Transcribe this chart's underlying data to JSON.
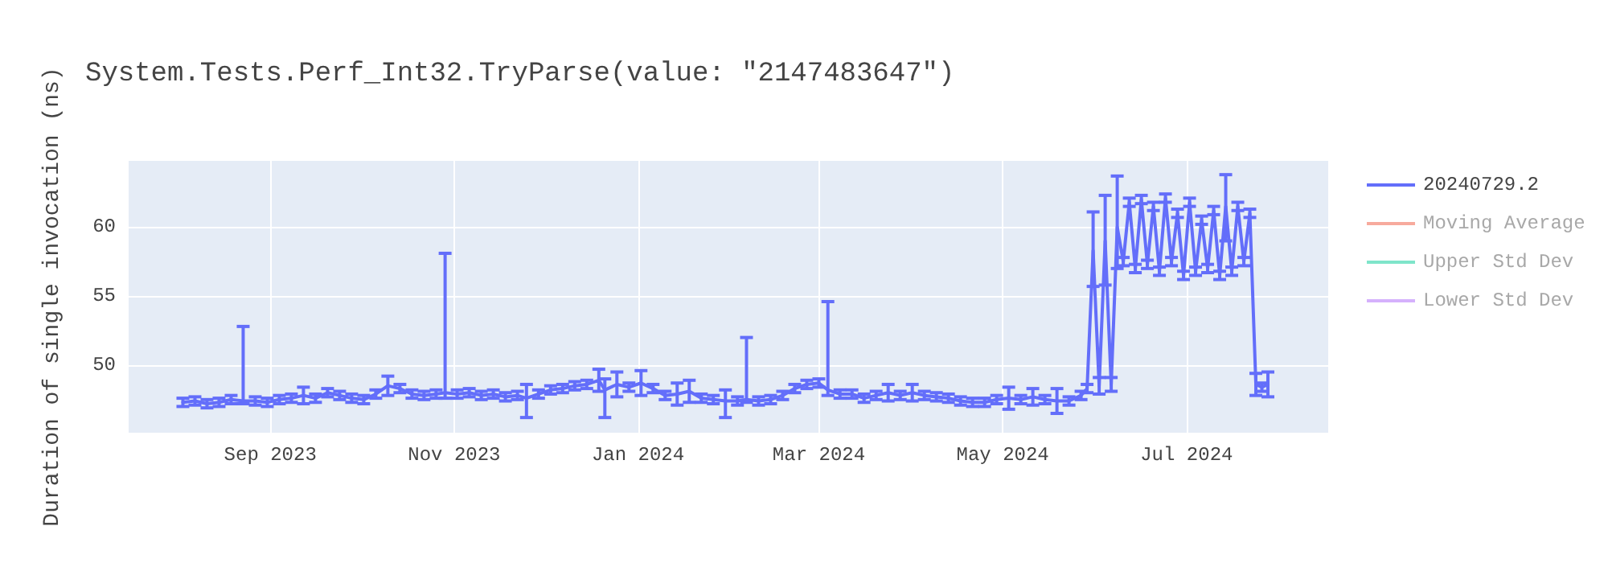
{
  "chart_data": {
    "type": "line",
    "title": "System.Tests.Perf_Int32.TryParse(value: \"2147483647\")",
    "ylabel": "Duration of single invocation (ns)",
    "x": [
      "2023-08-03",
      "2023-08-07",
      "2023-08-11",
      "2023-08-15",
      "2023-08-19",
      "2023-08-23",
      "2023-08-27",
      "2023-08-31",
      "2023-09-04",
      "2023-09-08",
      "2023-09-12",
      "2023-09-16",
      "2023-09-20",
      "2023-09-24",
      "2023-09-28",
      "2023-10-02",
      "2023-10-06",
      "2023-10-10",
      "2023-10-14",
      "2023-10-18",
      "2023-10-22",
      "2023-10-26",
      "2023-10-29",
      "2023-11-02",
      "2023-11-06",
      "2023-11-10",
      "2023-11-14",
      "2023-11-18",
      "2023-11-22",
      "2023-11-25",
      "2023-11-29",
      "2023-12-03",
      "2023-12-07",
      "2023-12-11",
      "2023-12-15",
      "2023-12-19",
      "2023-12-21",
      "2023-12-25",
      "2023-12-29",
      "2024-01-02",
      "2024-01-06",
      "2024-01-10",
      "2024-01-14",
      "2024-01-18",
      "2024-01-22",
      "2024-01-26",
      "2024-01-30",
      "2024-02-03",
      "2024-02-06",
      "2024-02-10",
      "2024-02-14",
      "2024-02-18",
      "2024-02-22",
      "2024-02-26",
      "2024-03-01",
      "2024-03-04",
      "2024-03-08",
      "2024-03-12",
      "2024-03-16",
      "2024-03-20",
      "2024-03-24",
      "2024-03-28",
      "2024-04-01",
      "2024-04-05",
      "2024-04-09",
      "2024-04-13",
      "2024-04-17",
      "2024-04-21",
      "2024-04-25",
      "2024-04-29",
      "2024-05-03",
      "2024-05-07",
      "2024-05-11",
      "2024-05-15",
      "2024-05-19",
      "2024-05-23",
      "2024-05-27",
      "2024-05-29",
      "2024-05-31",
      "2024-06-02",
      "2024-06-04",
      "2024-06-06",
      "2024-06-08",
      "2024-06-10",
      "2024-06-12",
      "2024-06-14",
      "2024-06-16",
      "2024-06-18",
      "2024-06-20",
      "2024-06-22",
      "2024-06-24",
      "2024-06-26",
      "2024-06-28",
      "2024-06-30",
      "2024-07-02",
      "2024-07-04",
      "2024-07-06",
      "2024-07-08",
      "2024-07-10",
      "2024-07-12",
      "2024-07-14",
      "2024-07-16",
      "2024-07-18",
      "2024-07-20",
      "2024-07-22",
      "2024-07-24",
      "2024-07-26",
      "2024-07-28"
    ],
    "series": [
      {
        "name": "20240729.2",
        "color": "#636efa",
        "values": [
          47.3,
          47.4,
          47.2,
          47.3,
          47.5,
          47.4,
          47.4,
          47.3,
          47.5,
          47.6,
          47.8,
          47.6,
          48.0,
          47.8,
          47.6,
          47.5,
          47.9,
          48.5,
          48.3,
          47.9,
          47.8,
          47.9,
          48.0,
          47.9,
          48.0,
          47.8,
          47.9,
          47.7,
          47.8,
          47.6,
          47.9,
          48.2,
          48.3,
          48.5,
          48.6,
          48.9,
          48.2,
          48.6,
          48.4,
          48.7,
          48.3,
          47.8,
          47.9,
          48.1,
          47.6,
          47.5,
          47.4,
          47.4,
          47.5,
          47.4,
          47.5,
          47.8,
          48.3,
          48.6,
          48.7,
          48.2,
          47.9,
          47.9,
          47.6,
          47.8,
          48.0,
          47.8,
          48.0,
          47.8,
          47.7,
          47.6,
          47.4,
          47.3,
          47.3,
          47.5,
          47.6,
          47.5,
          47.7,
          47.5,
          47.4,
          47.4,
          47.8,
          48.3,
          58.3,
          48.5,
          59.0,
          48.6,
          60.0,
          57.5,
          61.8,
          57.0,
          62.0,
          57.3,
          61.5,
          56.8,
          62.1,
          57.5,
          61.0,
          56.5,
          61.8,
          56.8,
          60.5,
          57.0,
          61.2,
          56.5,
          61.5,
          56.8,
          61.5,
          57.5,
          61.0,
          48.6,
          48.4,
          48.6
        ],
        "errors": [
          0.3,
          0.3,
          0.3,
          0.3,
          0.3,
          [
            47.2,
            52.8
          ],
          0.3,
          0.3,
          0.3,
          0.3,
          0.6,
          0.3,
          0.3,
          0.3,
          0.3,
          0.3,
          0.3,
          0.7,
          0.3,
          0.3,
          0.3,
          0.3,
          [
            47.6,
            58.1
          ],
          0.3,
          0.3,
          0.3,
          0.3,
          0.3,
          0.3,
          [
            46.2,
            48.6
          ],
          0.3,
          0.3,
          0.3,
          0.3,
          0.3,
          0.8,
          [
            46.2,
            49.0
          ],
          0.9,
          0.3,
          0.9,
          0.3,
          0.3,
          0.8,
          0.8,
          0.3,
          0.3,
          [
            46.2,
            48.2
          ],
          0.3,
          [
            47.3,
            52.0
          ],
          0.3,
          0.3,
          0.3,
          0.3,
          0.3,
          0.3,
          [
            47.8,
            54.6
          ],
          0.3,
          0.3,
          0.3,
          0.3,
          0.6,
          0.3,
          0.6,
          0.3,
          0.3,
          0.3,
          0.3,
          0.3,
          0.3,
          0.3,
          0.8,
          0.3,
          0.6,
          0.3,
          0.9,
          0.3,
          0.3,
          0.3,
          [
            55.7,
            61.1
          ],
          0.6,
          [
            55.8,
            62.3
          ],
          0.5,
          [
            57.0,
            63.7
          ],
          0.3,
          0.3,
          0.3,
          0.3,
          0.3,
          0.3,
          0.3,
          0.3,
          0.3,
          0.3,
          0.3,
          0.3,
          0.3,
          0.3,
          0.3,
          0.3,
          0.3,
          [
            59.0,
            63.8
          ],
          0.3,
          0.3,
          0.3,
          0.3,
          0.8,
          0.3,
          0.9
        ]
      },
      {
        "name": "Moving Average",
        "color": "#ef553b",
        "values": [
          null,
          null,
          null,
          null,
          null,
          null,
          null,
          null,
          null,
          null,
          null,
          null,
          null,
          null,
          null,
          null,
          null,
          null,
          null,
          null,
          null,
          null,
          null,
          null,
          null,
          null,
          null,
          null,
          null,
          null,
          null,
          null,
          null,
          null,
          null,
          null,
          null,
          null,
          null,
          null,
          null,
          null,
          null,
          null,
          null,
          null,
          null,
          null,
          null,
          null,
          null,
          null,
          null,
          null,
          null,
          null,
          null,
          null,
          null,
          null,
          null,
          null,
          null,
          null,
          null,
          null,
          null,
          null,
          null,
          null,
          null,
          null,
          null,
          null,
          null,
          null,
          null,
          null,
          null,
          null,
          null,
          null,
          null,
          null,
          null,
          null,
          null,
          null,
          null,
          null,
          null,
          null,
          null,
          null,
          null,
          null,
          null,
          null,
          null,
          null,
          null,
          null,
          null,
          null,
          null,
          null,
          null,
          null
        ]
      },
      {
        "name": "Upper Std Dev",
        "color": "#00cc96",
        "values": [
          null,
          null,
          null,
          null,
          null,
          null,
          null,
          null,
          null,
          null,
          null,
          null,
          null,
          null,
          null,
          null,
          null,
          null,
          null,
          null,
          null,
          null,
          null,
          null,
          null,
          null,
          null,
          null,
          null,
          null,
          null,
          null,
          null,
          null,
          null,
          null,
          null,
          null,
          null,
          null,
          null,
          null,
          null,
          null,
          null,
          null,
          null,
          null,
          null,
          null,
          null,
          null,
          null,
          null,
          null,
          null,
          null,
          null,
          null,
          null,
          null,
          null,
          null,
          null,
          null,
          null,
          null,
          null,
          null,
          null,
          null,
          null,
          null,
          null,
          null,
          null,
          null,
          null,
          null,
          null,
          null,
          null,
          null,
          null,
          null,
          null,
          null,
          null,
          null,
          null,
          null,
          null,
          null,
          null,
          null,
          null,
          null,
          null,
          null,
          null,
          null,
          null,
          null,
          null,
          null,
          null,
          null,
          null
        ]
      },
      {
        "name": "Lower Std Dev",
        "color": "#ab63fa",
        "values": [
          null,
          null,
          null,
          null,
          null,
          null,
          null,
          null,
          null,
          null,
          null,
          null,
          null,
          null,
          null,
          null,
          null,
          null,
          null,
          null,
          null,
          null,
          null,
          null,
          null,
          null,
          null,
          null,
          null,
          null,
          null,
          null,
          null,
          null,
          null,
          null,
          null,
          null,
          null,
          null,
          null,
          null,
          null,
          null,
          null,
          null,
          null,
          null,
          null,
          null,
          null,
          null,
          null,
          null,
          null,
          null,
          null,
          null,
          null,
          null,
          null,
          null,
          null,
          null,
          null,
          null,
          null,
          null,
          null,
          null,
          null,
          null,
          null,
          null,
          null,
          null,
          null,
          null,
          null,
          null,
          null,
          null,
          null,
          null,
          null,
          null,
          null,
          null,
          null,
          null,
          null,
          null,
          null,
          null,
          null,
          null,
          null,
          null,
          null,
          null,
          null,
          null,
          null,
          null,
          null,
          null,
          null,
          null
        ]
      }
    ],
    "xlim": [
      "2023-07-16",
      "2024-08-17"
    ],
    "xticks": [
      {
        "value": "2023-09-01",
        "label": "Sep 2023"
      },
      {
        "value": "2023-11-01",
        "label": "Nov 2023"
      },
      {
        "value": "2024-01-01",
        "label": "Jan 2024"
      },
      {
        "value": "2024-03-01",
        "label": "Mar 2024"
      },
      {
        "value": "2024-05-01",
        "label": "May 2024"
      },
      {
        "value": "2024-07-01",
        "label": "Jul 2024"
      }
    ],
    "ylim": [
      45.1,
      64.8
    ],
    "yticks": [
      50,
      55,
      60
    ],
    "grid": true,
    "legend": "top right",
    "marker": "none",
    "line_style": "solid"
  }
}
